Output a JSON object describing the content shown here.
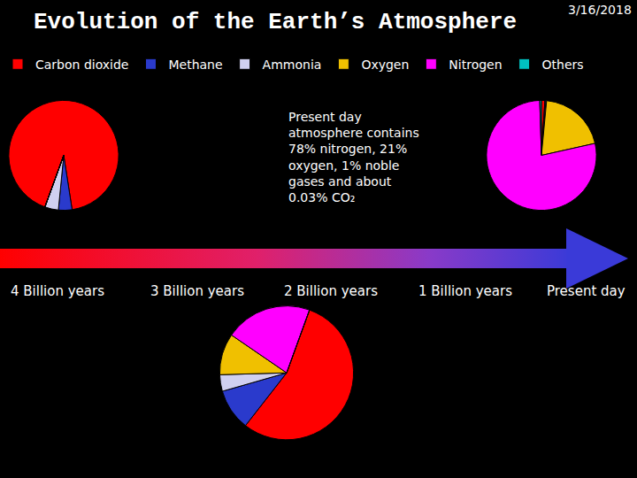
{
  "title": "Evolution of the Earth’s Atmosphere",
  "date": "3/16/2018",
  "note": [
    "Present day",
    "atmosphere contains",
    "78% nitrogen, 21%",
    "oxygen, 1% noble",
    "gases and about",
    "0.03% CO₂"
  ],
  "timeline": [
    "4 Billion years",
    "3 Billion years",
    "2 Billion years",
    "1 Billion years",
    "Present day"
  ],
  "chart_data": [
    {
      "type": "pie",
      "legend": "top",
      "categories": [
        "Carbon dioxide",
        "Methane",
        "Ammonia",
        "Oxygen",
        "Nitrogen",
        "Others"
      ],
      "values": [
        92,
        4,
        4,
        0,
        0,
        0
      ],
      "colors": [
        "#ff0000",
        "#2a3acc",
        "#d0d0f0",
        "#f0c000",
        "#ff00ff",
        "#00c0c0"
      ]
    },
    {
      "type": "pie",
      "legend": "top",
      "categories": [
        "Carbon dioxide",
        "Methane",
        "Ammonia",
        "Oxygen",
        "Nitrogen",
        "Others"
      ],
      "values": [
        55,
        10,
        4,
        10,
        21,
        0
      ],
      "colors": [
        "#ff0000",
        "#2a3acc",
        "#d0d0f0",
        "#f0c000",
        "#ff00ff",
        "#00c0c0"
      ]
    },
    {
      "type": "pie",
      "legend": "top",
      "categories": [
        "Carbon dioxide",
        "Methane",
        "Ammonia",
        "Oxygen",
        "Nitrogen",
        "Others"
      ],
      "values": [
        1,
        0.3,
        0.2,
        20,
        78,
        0.5
      ],
      "colors": [
        "#ff0000",
        "#2a3acc",
        "#d0d0f0",
        "#f0c000",
        "#ff00ff",
        "#00c0c0"
      ]
    }
  ]
}
